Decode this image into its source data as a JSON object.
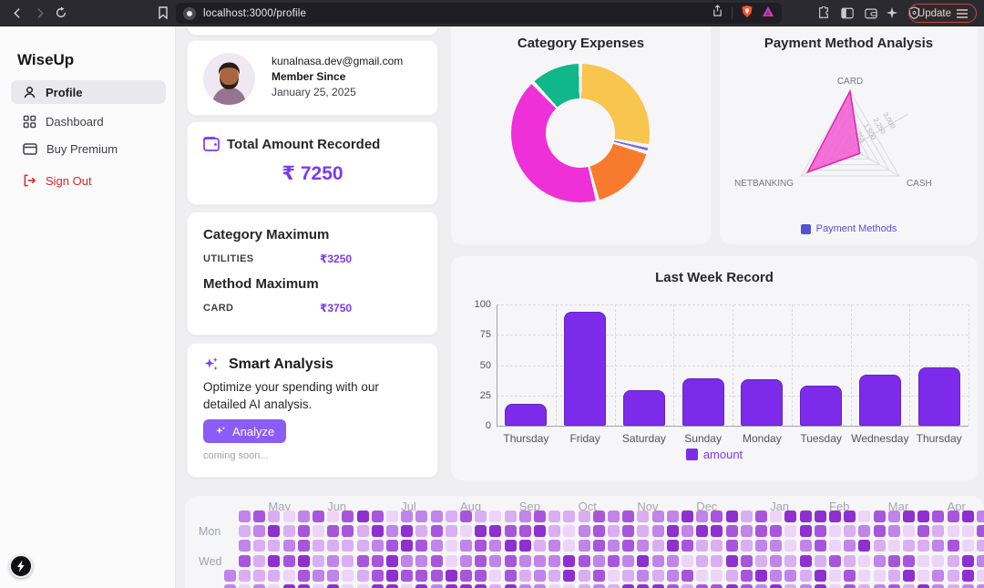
{
  "browser": {
    "url": "localhost:3000/profile",
    "update_label": "Update"
  },
  "sidebar": {
    "brand": "WiseUp",
    "items": [
      {
        "label": "Profile",
        "active": true
      },
      {
        "label": "Dashboard",
        "active": false
      },
      {
        "label": "Buy Premium",
        "active": false
      },
      {
        "label": "Sign Out",
        "active": false
      }
    ]
  },
  "profile_card": {
    "email": "kunalnasa.dev@gmail.com",
    "member_since_label": "Member Since",
    "member_since_value": "January 25, 2025"
  },
  "total_card": {
    "label": "Total Amount Recorded",
    "value": "₹ 7250"
  },
  "maxima_card": {
    "category_title": "Category Maximum",
    "category_name": "UTILITIES",
    "category_value": "₹3250",
    "method_title": "Method Maximum",
    "method_name": "CARD",
    "method_value": "₹3750"
  },
  "smart_card": {
    "title": "Smart Analysis",
    "description": "Optimize your spending with our detailed AI analysis.",
    "button_label": "Analyze",
    "note": "coming soon..."
  },
  "chart_data": [
    {
      "type": "pie",
      "variant": "donut",
      "title": "Category Expenses",
      "segments": [
        {
          "color": "#F8C54E",
          "pct": 28
        },
        {
          "color": "#7E6BD9",
          "pct": 1.5
        },
        {
          "color": "#F87B2D",
          "pct": 16.5
        },
        {
          "color": "#EF2FD8",
          "pct": 42
        },
        {
          "color": "#10B78B",
          "pct": 12
        }
      ]
    },
    {
      "type": "radar",
      "title": "Payment Method Analysis",
      "categories": [
        "CARD",
        "CASH",
        "NETBANKING"
      ],
      "series": [
        {
          "name": "Payment Methods",
          "values": [
            3750,
            750,
            3250
          ]
        }
      ],
      "max": 3750,
      "ticks": [
        750,
        1500,
        2250,
        3000
      ],
      "fill": "#F250D0",
      "stroke": "#D926AE",
      "legend_color": "#5451D6"
    },
    {
      "type": "bar",
      "title": "Last Week Record",
      "categories": [
        "Thursday",
        "Friday",
        "Saturday",
        "Sunday",
        "Monday",
        "Tuesday",
        "Wednesday",
        "Thursday"
      ],
      "values": [
        18,
        94,
        29,
        39,
        38,
        33,
        42,
        48
      ],
      "ylim": [
        0,
        100
      ],
      "yticks": [
        0,
        25,
        50,
        75,
        100
      ],
      "legend": "amount",
      "bar_color": "#7C2BEA"
    },
    {
      "type": "heatmap",
      "months": [
        "May",
        "Jun",
        "Jul",
        "Aug",
        "Sep",
        "Oct",
        "Nov",
        "Dec",
        "Jan",
        "Feb",
        "Mar",
        "Apr"
      ],
      "month_cols": [
        3,
        7,
        12,
        16,
        20,
        24,
        28,
        32,
        37,
        41,
        45,
        49
      ],
      "day_labels": [
        {
          "label": "Mon",
          "row": 1
        },
        {
          "label": "Wed",
          "row": 3
        }
      ],
      "palette": [
        "#ECD5F8",
        "#D9AEF2",
        "#C084EA",
        "#A855DD",
        "#8F2FD0"
      ],
      "rows": 6,
      "cols": 52,
      "first_col_start_row": 4,
      "seed": 7
    }
  ],
  "colors": {
    "accent": "#7C3AED",
    "signout_red": "#DC2626",
    "brave_orange": "#FB542B",
    "legend_indigo": "#5451D6"
  }
}
